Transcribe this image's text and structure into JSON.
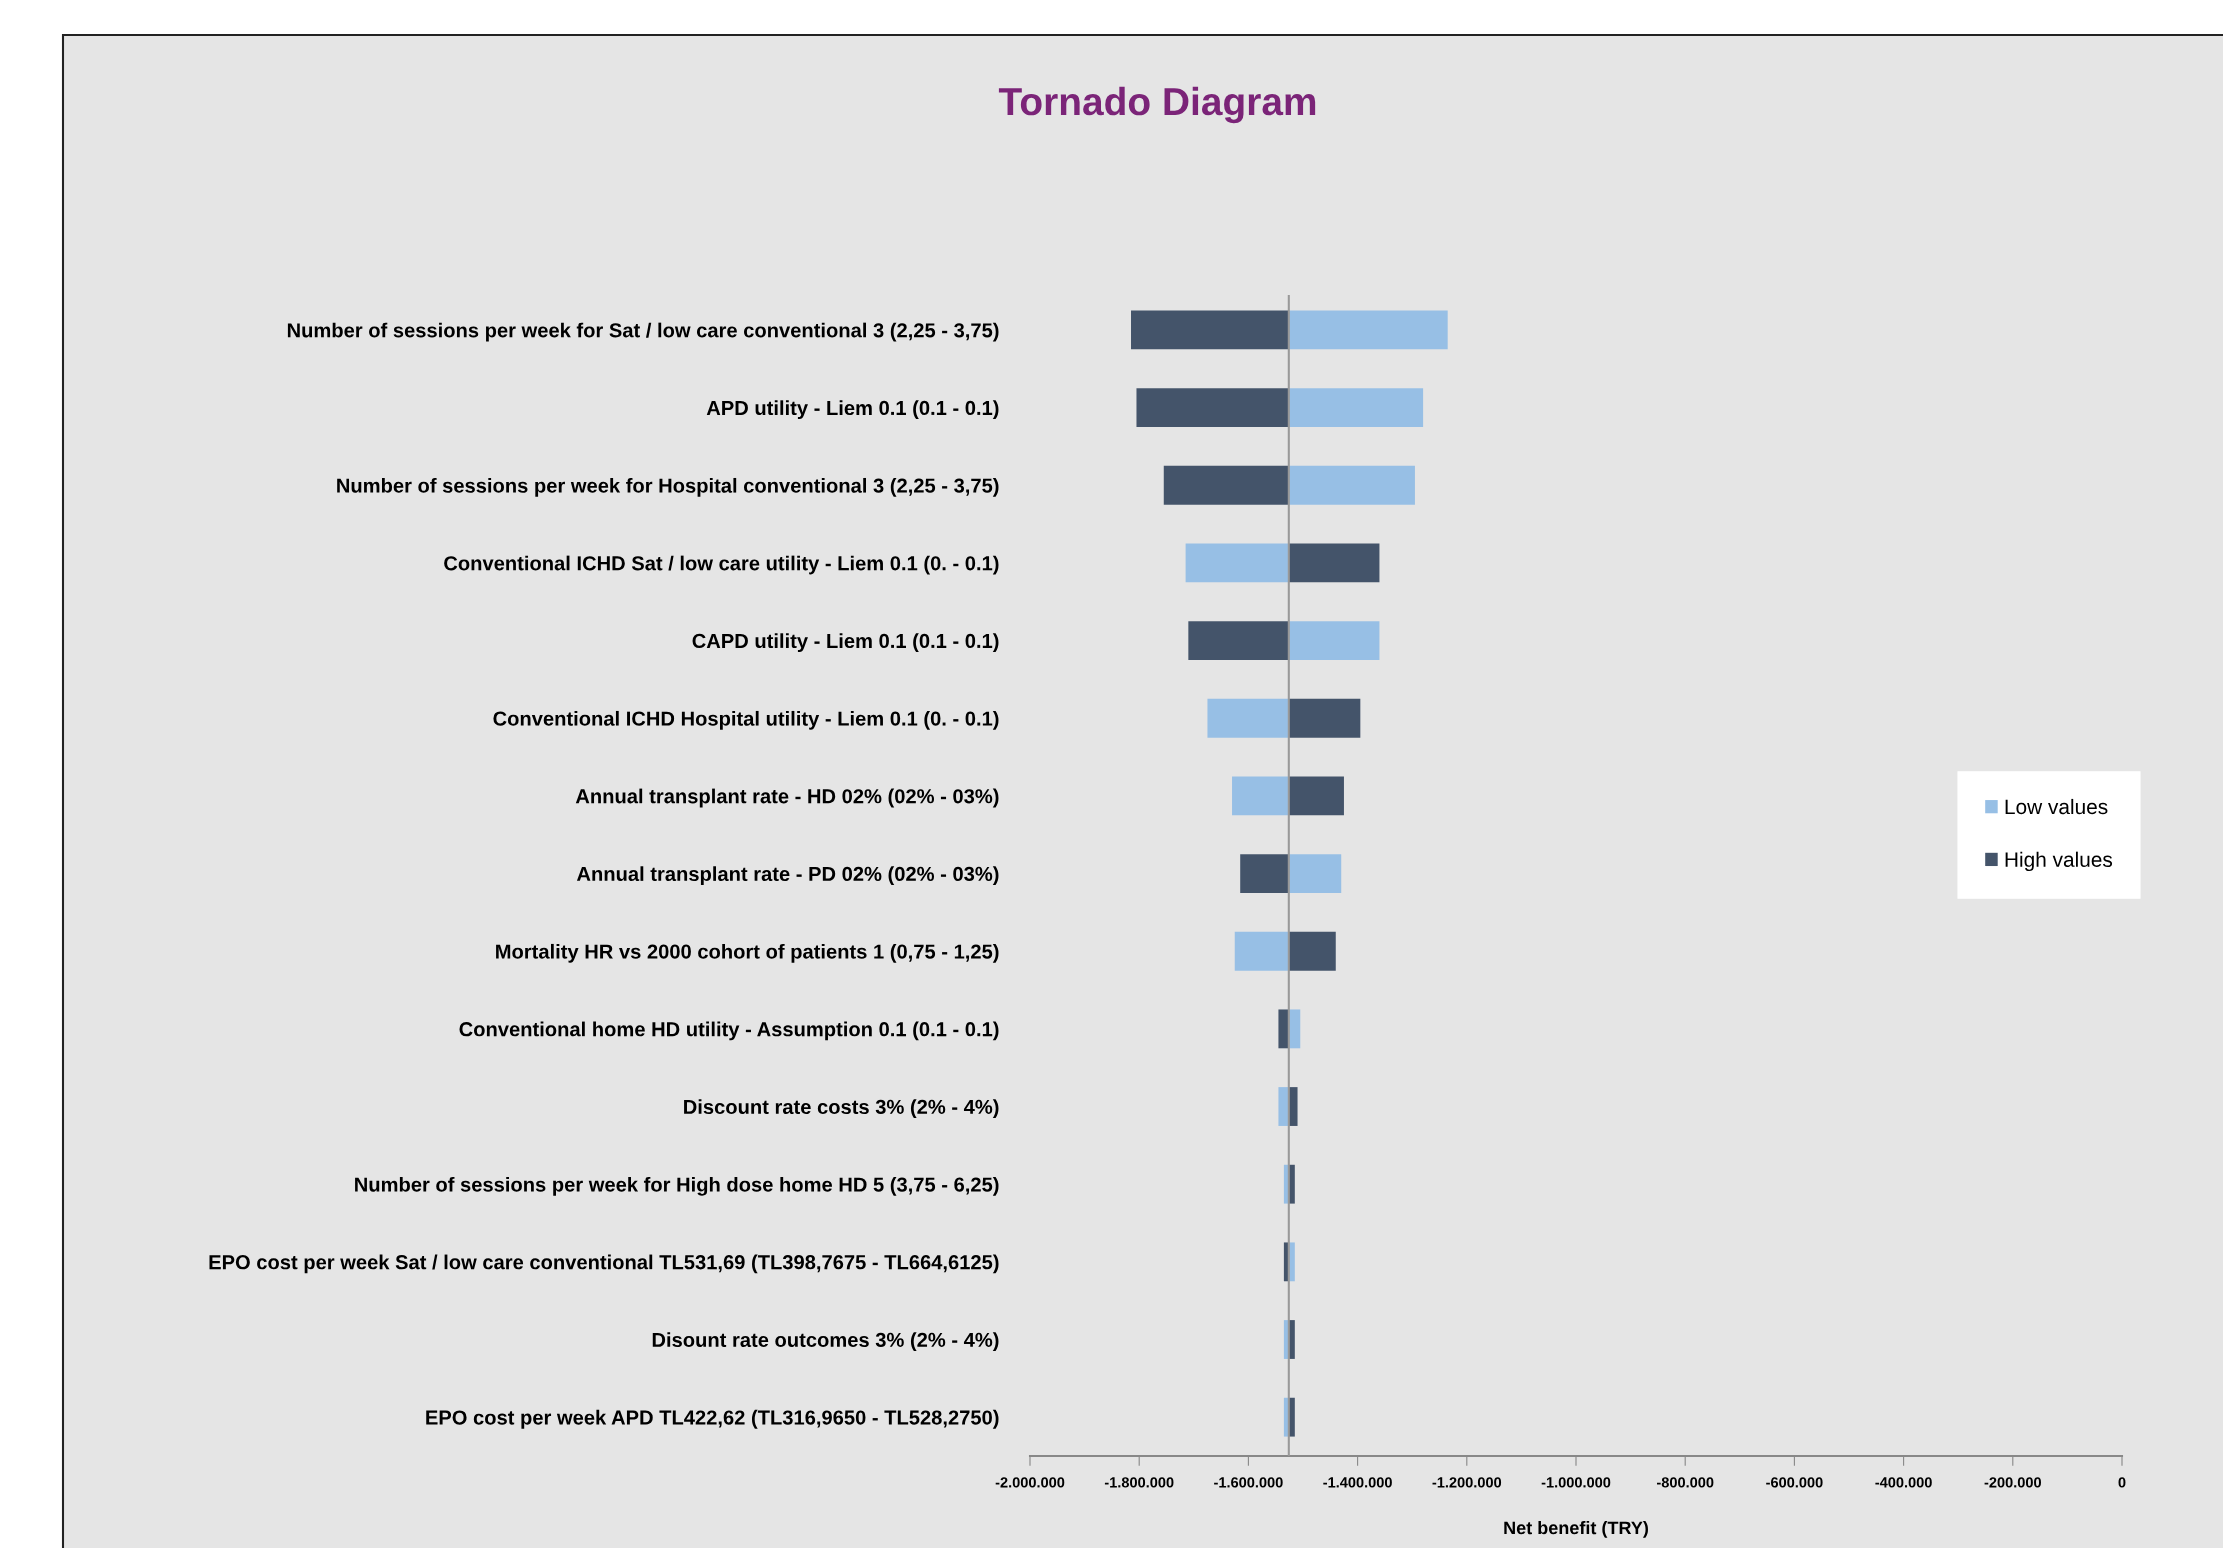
{
  "chart_data": {
    "type": "bar",
    "orientation": "horizontal",
    "title": "Tornado Diagram",
    "xlabel": "Net benefit (TRY)",
    "categories": [
      "Number of sessions per week for Sat / low care conventional 3 (2,25 - 3,75)",
      "APD utility - Liem 0.1 (0.1 - 0.1)",
      "Number of sessions per week for Hospital conventional 3 (2,25 - 3,75)",
      "Conventional ICHD Sat / low care utility - Liem 0.1 (0. - 0.1)",
      "CAPD utility - Liem 0.1 (0.1 - 0.1)",
      "Conventional ICHD Hospital utility - Liem 0.1 (0. - 0.1)",
      "Annual transplant rate - HD 02% (02% - 03%)",
      "Annual transplant rate - PD 02% (02% - 03%)",
      "Mortality HR vs 2000 cohort of patients 1 (0,75 - 1,25)",
      "Conventional home HD utility - Assumption 0.1 (0.1 - 0.1)",
      "Discount rate costs 3% (2% - 4%)",
      "Number of sessions per week for High dose home HD 5 (3,75 - 6,25)",
      "EPO cost per week Sat / low care conventional TL531,69 (TL398,7675 - TL664,6125)",
      "Disount rate outcomes 3% (2% - 4%)",
      "EPO cost per week APD TL422,62 (TL316,9650 - TL528,2750)"
    ],
    "series": [
      {
        "name": "Low values",
        "color": "#97bfe5",
        "base": [
          -1526000,
          -1526000,
          -1526000,
          -1526000,
          -1526000,
          -1526000,
          -1526000,
          -1526000,
          -1526000,
          -1526000,
          -1526000,
          -1526000,
          -1526000,
          -1526000,
          -1526000
        ],
        "values": [
          291000,
          246000,
          231000,
          -189000,
          166000,
          -149000,
          -104000,
          96000,
          -99000,
          21000,
          -19000,
          -9000,
          11000,
          -9000,
          -9000
        ]
      },
      {
        "name": "High values",
        "color": "#44546a",
        "base": [
          -1526000,
          -1526000,
          -1526000,
          -1526000,
          -1526000,
          -1526000,
          -1526000,
          -1526000,
          -1526000,
          -1526000,
          -1526000,
          -1526000,
          -1526000,
          -1526000,
          -1526000
        ],
        "values": [
          -289000,
          -279000,
          -229000,
          166000,
          -184000,
          131000,
          101000,
          -89000,
          86000,
          -19000,
          16000,
          11000,
          -9000,
          11000,
          11000
        ]
      }
    ],
    "xlim": [
      -2000000,
      0
    ],
    "xticks": [
      {
        "value": -2000000,
        "label": "-2.000.000"
      },
      {
        "value": -1800000,
        "label": "-1.800.000"
      },
      {
        "value": -1600000,
        "label": "-1.600.000"
      },
      {
        "value": -1400000,
        "label": "-1.400.000"
      },
      {
        "value": -1200000,
        "label": "-1.200.000"
      },
      {
        "value": -1000000,
        "label": "-1.000.000"
      },
      {
        "value": -800000,
        "label": "-800.000"
      },
      {
        "value": -600000,
        "label": "-600.000"
      },
      {
        "value": -400000,
        "label": "-400.000"
      },
      {
        "value": -200000,
        "label": "-200.000"
      },
      0
    ],
    "ref_lines": [
      {
        "axis": "x",
        "value": -1526000,
        "color": "#999999"
      }
    ],
    "grid": false,
    "legend": "right"
  }
}
